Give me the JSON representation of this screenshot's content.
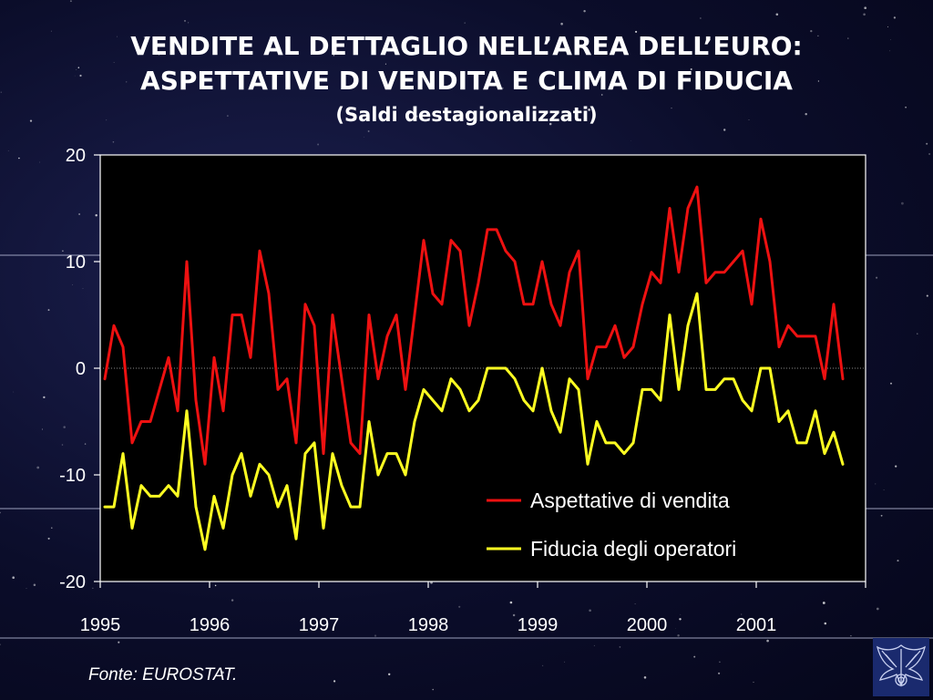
{
  "title_line1": "VENDITE AL DETTAGLIO NELL’AREA DELL’EURO:",
  "title_line2": "ASPETTATIVE DI VENDITA E CLIMA DI FIDUCIA",
  "subtitle": "(Saldi destagionalizzati)",
  "source": "Fonte:  EUROSTAT.",
  "logo_icon": "eagle-emblem-icon",
  "chart_data": {
    "type": "line",
    "title": "VENDITE AL DETTAGLIO NELL’AREA DELL’EURO: ASPETTATIVE DI VENDITA E CLIMA DI FIDUCIA",
    "subtitle": "(Saldi destagionalizzati)",
    "xlabel": "",
    "ylabel": "",
    "ylim": [
      -20,
      20
    ],
    "yticks": [
      -20,
      -10,
      0,
      10,
      20
    ],
    "xtick_labels": [
      "1995",
      "1996",
      "1997",
      "1998",
      "1999",
      "2000",
      "2001"
    ],
    "x_start": "1995-01",
    "x_frequency": "monthly",
    "grid": false,
    "zero_line": "dotted",
    "legend_position": "bottom-right",
    "background_color": "#000000",
    "series": [
      {
        "name": "Aspettative di vendita",
        "color": "#ee1111",
        "values": [
          -1,
          4,
          2,
          -7,
          -5,
          -5,
          -2,
          1,
          -4,
          10,
          -3,
          -9,
          1,
          -4,
          5,
          5,
          1,
          11,
          7,
          -2,
          -1,
          -7,
          6,
          4,
          -8,
          5,
          -1,
          -7,
          -8,
          5,
          -1,
          3,
          5,
          -2,
          5,
          12,
          7,
          6,
          12,
          11,
          4,
          8,
          13,
          13,
          11,
          10,
          6,
          6,
          10,
          6,
          4,
          9,
          11,
          -1,
          2,
          2,
          4,
          1,
          2,
          6,
          9,
          8,
          15,
          9,
          15,
          17,
          8,
          9,
          9,
          10,
          11,
          6,
          14,
          10,
          2,
          4,
          3,
          3,
          3,
          -1,
          6,
          -1
        ]
      },
      {
        "name": "Fiducia degli operatori",
        "color": "#ffff22",
        "values": [
          -13,
          -13,
          -8,
          -15,
          -11,
          -12,
          -12,
          -11,
          -12,
          -4,
          -13,
          -17,
          -12,
          -15,
          -10,
          -8,
          -12,
          -9,
          -10,
          -13,
          -11,
          -16,
          -8,
          -7,
          -15,
          -8,
          -11,
          -13,
          -13,
          -5,
          -10,
          -8,
          -8,
          -10,
          -5,
          -2,
          -3,
          -4,
          -1,
          -2,
          -4,
          -3,
          0,
          0,
          0,
          -1,
          -3,
          -4,
          0,
          -4,
          -6,
          -1,
          -2,
          -9,
          -5,
          -7,
          -7,
          -8,
          -7,
          -2,
          -2,
          -3,
          5,
          -2,
          4,
          7,
          -2,
          -2,
          -1,
          -1,
          -3,
          -4,
          0,
          0,
          -5,
          -4,
          -7,
          -7,
          -4,
          -8,
          -6,
          -9
        ]
      }
    ]
  }
}
